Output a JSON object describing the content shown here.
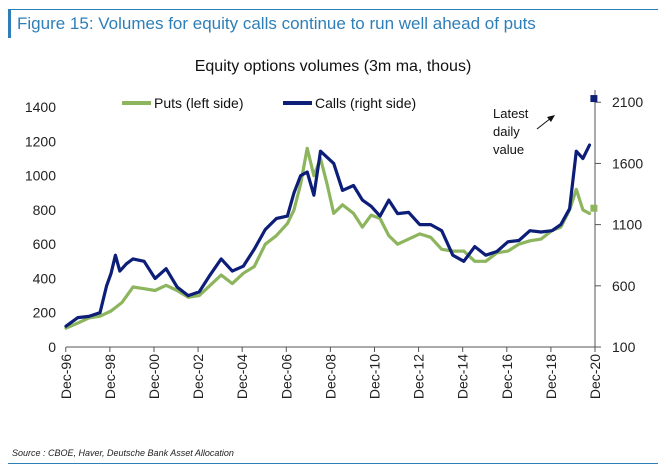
{
  "figure_title": "Figure 15: Volumes for equity calls continue to run well ahead of puts",
  "source": "Source : CBOE, Haver, Deutsche Bank Asset Allocation",
  "chart_data": {
    "type": "line",
    "title": "Equity options volumes (3m ma, thous)",
    "x_tick_labels": [
      "Dec-96",
      "Dec-98",
      "Dec-00",
      "Dec-02",
      "Dec-04",
      "Dec-06",
      "Dec-08",
      "Dec-10",
      "Dec-12",
      "Dec-14",
      "Dec-16",
      "Dec-18",
      "Dec-20"
    ],
    "x_range": [
      1996.96,
      2020.95
    ],
    "y_left": {
      "range": [
        0,
        1500
      ],
      "ticks": [
        0,
        200,
        400,
        600,
        800,
        1000,
        1200,
        1400
      ]
    },
    "y_right": {
      "range": [
        100,
        2200
      ],
      "ticks": [
        100,
        600,
        1100,
        1600,
        2100
      ]
    },
    "legend_position": "top-left",
    "annotation": "Latest daily value",
    "series": [
      {
        "name": "Puts (left side)",
        "axis": "left",
        "color": "#8db55d",
        "x": [
          1996.96,
          1997.5,
          1998.0,
          1998.5,
          1999.0,
          1999.5,
          2000.0,
          2000.5,
          2001.0,
          2001.5,
          2002.0,
          2002.5,
          2003.0,
          2003.5,
          2004.0,
          2004.5,
          2005.0,
          2005.5,
          2006.0,
          2006.5,
          2007.0,
          2007.3,
          2007.6,
          2007.9,
          2008.2,
          2008.5,
          2008.8,
          2009.1,
          2009.5,
          2010.0,
          2010.4,
          2010.8,
          2011.2,
          2011.6,
          2012.0,
          2012.5,
          2013.0,
          2013.5,
          2014.0,
          2014.5,
          2015.0,
          2015.5,
          2016.0,
          2016.5,
          2017.0,
          2017.5,
          2018.0,
          2018.5,
          2019.0,
          2019.4,
          2019.8,
          2020.1,
          2020.4,
          2020.7
        ],
        "values": [
          110,
          140,
          170,
          180,
          210,
          260,
          350,
          340,
          330,
          360,
          330,
          290,
          300,
          360,
          420,
          370,
          430,
          470,
          600,
          650,
          720,
          800,
          950,
          1160,
          1000,
          1100,
          950,
          780,
          830,
          780,
          700,
          770,
          750,
          650,
          600,
          630,
          660,
          640,
          570,
          560,
          560,
          500,
          500,
          550,
          560,
          600,
          620,
          630,
          680,
          700,
          800,
          920,
          800,
          780
        ]
      },
      {
        "name": "Calls (right side)",
        "axis": "right",
        "color": "#0d1e78",
        "x": [
          1996.96,
          1997.5,
          1998.0,
          1998.5,
          1998.8,
          1999.0,
          1999.2,
          1999.4,
          1999.7,
          2000.0,
          2000.5,
          2001.0,
          2001.5,
          2002.0,
          2002.5,
          2003.0,
          2003.5,
          2004.0,
          2004.5,
          2005.0,
          2005.5,
          2006.0,
          2006.5,
          2007.0,
          2007.3,
          2007.6,
          2007.9,
          2008.2,
          2008.5,
          2008.8,
          2009.1,
          2009.5,
          2010.0,
          2010.4,
          2010.8,
          2011.2,
          2011.6,
          2012.0,
          2012.5,
          2013.0,
          2013.5,
          2014.0,
          2014.5,
          2015.0,
          2015.5,
          2016.0,
          2016.5,
          2017.0,
          2017.5,
          2018.0,
          2018.5,
          2019.0,
          2019.4,
          2019.8,
          2020.1,
          2020.4,
          2020.7
        ],
        "values": [
          270,
          340,
          350,
          380,
          600,
          700,
          850,
          720,
          780,
          820,
          800,
          660,
          740,
          590,
          520,
          550,
          690,
          820,
          720,
          760,
          900,
          1060,
          1150,
          1170,
          1360,
          1500,
          1530,
          1340,
          1700,
          1650,
          1600,
          1380,
          1420,
          1300,
          1250,
          1170,
          1300,
          1190,
          1200,
          1100,
          1100,
          1050,
          850,
          800,
          920,
          850,
          880,
          960,
          970,
          1050,
          1040,
          1050,
          1100,
          1230,
          1700,
          1640,
          1750
        ]
      }
    ],
    "latest_daily": [
      {
        "series": "Puts (left side)",
        "x": 2020.9,
        "value": 810
      },
      {
        "series": "Calls (right side)",
        "x": 2020.9,
        "value": 2130
      }
    ]
  }
}
